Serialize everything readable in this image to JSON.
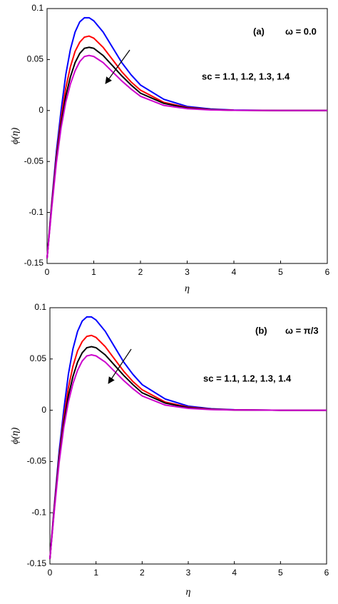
{
  "chart_data": [
    {
      "type": "line",
      "panel_label": "(a)",
      "annotation": "ω = 0.0",
      "legend_text": "sc = 1.1, 1.2, 1.3, 1.4",
      "x_label": "η",
      "y_label": "ϕ(η)",
      "x": [
        0,
        0.1,
        0.2,
        0.3,
        0.4,
        0.5,
        0.6,
        0.7,
        0.8,
        0.9,
        1.0,
        1.2,
        1.4,
        1.6,
        1.8,
        2,
        2.5,
        3,
        3.5,
        4,
        5,
        6
      ],
      "series": [
        {
          "color": "#0000ff",
          "values": [
            -0.145,
            -0.09,
            -0.04,
            0.0,
            0.035,
            0.06,
            0.077,
            0.087,
            0.091,
            0.091,
            0.088,
            0.077,
            0.062,
            0.047,
            0.035,
            0.025,
            0.011,
            0.004,
            0.0015,
            0.0005,
            0,
            0
          ]
        },
        {
          "color": "#ff0000",
          "values": [
            -0.145,
            -0.092,
            -0.045,
            -0.008,
            0.022,
            0.043,
            0.058,
            0.067,
            0.072,
            0.073,
            0.071,
            0.062,
            0.05,
            0.038,
            0.028,
            0.02,
            0.008,
            0.003,
            0.001,
            0.0003,
            0,
            0
          ]
        },
        {
          "color": "#000000",
          "values": [
            -0.145,
            -0.094,
            -0.048,
            -0.013,
            0.014,
            0.033,
            0.047,
            0.056,
            0.061,
            0.062,
            0.061,
            0.054,
            0.044,
            0.034,
            0.025,
            0.017,
            0.007,
            0.0025,
            0.0008,
            0.0002,
            0,
            0
          ]
        },
        {
          "color": "#cc00cc",
          "values": [
            -0.145,
            -0.096,
            -0.051,
            -0.017,
            0.008,
            0.026,
            0.039,
            0.048,
            0.053,
            0.054,
            0.053,
            0.047,
            0.038,
            0.029,
            0.021,
            0.014,
            0.005,
            0.0018,
            0.0006,
            0.0002,
            0,
            0
          ]
        }
      ],
      "xlim": [
        0,
        6
      ],
      "xticks": [
        0,
        1,
        2,
        3,
        4,
        5,
        6
      ],
      "ylim": [
        -0.15,
        0.1
      ],
      "yticks": [
        -0.15,
        -0.1,
        -0.05,
        0,
        0.05,
        0.1
      ]
    },
    {
      "type": "line",
      "panel_label": "(b)",
      "annotation": "ω = π/3",
      "legend_text": "sc = 1.1, 1.2, 1.3, 1.4",
      "x_label": "η",
      "y_label": "ϕ(η)",
      "x": [
        0,
        0.1,
        0.2,
        0.3,
        0.4,
        0.5,
        0.6,
        0.7,
        0.8,
        0.9,
        1.0,
        1.2,
        1.4,
        1.6,
        1.8,
        2,
        2.5,
        3,
        3.5,
        4,
        5,
        6
      ],
      "series": [
        {
          "color": "#0000ff",
          "values": [
            -0.145,
            -0.09,
            -0.04,
            0.0,
            0.035,
            0.06,
            0.077,
            0.087,
            0.091,
            0.091,
            0.088,
            0.077,
            0.062,
            0.047,
            0.035,
            0.025,
            0.011,
            0.004,
            0.0015,
            0.0005,
            0,
            0
          ]
        },
        {
          "color": "#ff0000",
          "values": [
            -0.145,
            -0.092,
            -0.045,
            -0.008,
            0.022,
            0.043,
            0.058,
            0.067,
            0.072,
            0.073,
            0.071,
            0.062,
            0.05,
            0.038,
            0.028,
            0.02,
            0.008,
            0.003,
            0.001,
            0.0003,
            0,
            0
          ]
        },
        {
          "color": "#000000",
          "values": [
            -0.145,
            -0.094,
            -0.048,
            -0.013,
            0.014,
            0.033,
            0.047,
            0.056,
            0.061,
            0.062,
            0.061,
            0.054,
            0.044,
            0.034,
            0.025,
            0.017,
            0.007,
            0.0025,
            0.0008,
            0.0002,
            0,
            0
          ]
        },
        {
          "color": "#cc00cc",
          "values": [
            -0.145,
            -0.096,
            -0.051,
            -0.017,
            0.008,
            0.026,
            0.039,
            0.048,
            0.053,
            0.054,
            0.053,
            0.047,
            0.038,
            0.029,
            0.021,
            0.014,
            0.005,
            0.0018,
            0.0006,
            0.0002,
            0,
            0
          ]
        }
      ],
      "xlim": [
        0,
        6
      ],
      "xticks": [
        0,
        1,
        2,
        3,
        4,
        5,
        6
      ],
      "ylim": [
        -0.15,
        0.1
      ],
      "yticks": [
        -0.15,
        -0.1,
        -0.05,
        0,
        0.05,
        0.1
      ]
    }
  ]
}
